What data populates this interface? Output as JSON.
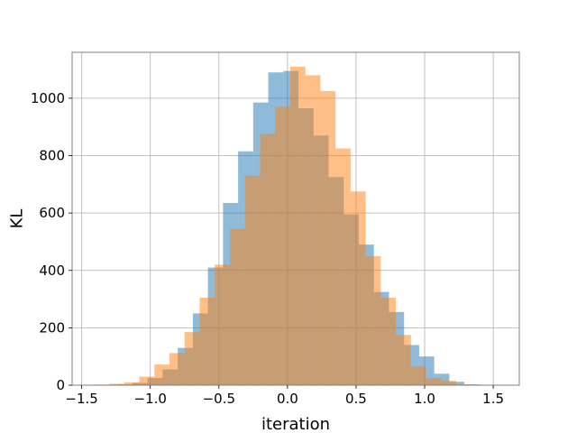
{
  "chart_data": {
    "type": "histogram",
    "title": "",
    "xlabel": "iteration",
    "ylabel": "KL",
    "xlim": [
      -1.57,
      1.69
    ],
    "ylim": [
      0,
      1160
    ],
    "xticks": [
      -1.5,
      -1.0,
      -0.5,
      0.0,
      0.5,
      1.0,
      1.5
    ],
    "xtick_labels": [
      "−1.5",
      "−1.0",
      "−0.5",
      "0.0",
      "0.5",
      "1.0",
      "1.5"
    ],
    "yticks": [
      0,
      200,
      400,
      600,
      800,
      1000
    ],
    "ytick_labels": [
      "0",
      "200",
      "400",
      "600",
      "800",
      "1000"
    ],
    "grid": true,
    "legend": false,
    "series": [
      {
        "color": "#1f77b4",
        "opacity": 0.5,
        "bins": [
          {
            "x0": -1.35,
            "x1": -1.24,
            "count": 1
          },
          {
            "x0": -1.24,
            "x1": -1.13,
            "count": 3
          },
          {
            "x0": -1.13,
            "x1": -1.02,
            "count": 8
          },
          {
            "x0": -1.02,
            "x1": -0.91,
            "count": 25
          },
          {
            "x0": -0.91,
            "x1": -0.8,
            "count": 55
          },
          {
            "x0": -0.8,
            "x1": -0.69,
            "count": 130
          },
          {
            "x0": -0.69,
            "x1": -0.58,
            "count": 250
          },
          {
            "x0": -0.58,
            "x1": -0.47,
            "count": 410
          },
          {
            "x0": -0.47,
            "x1": -0.36,
            "count": 635
          },
          {
            "x0": -0.36,
            "x1": -0.25,
            "count": 815
          },
          {
            "x0": -0.25,
            "x1": -0.14,
            "count": 985
          },
          {
            "x0": -0.14,
            "x1": -0.03,
            "count": 1090
          },
          {
            "x0": -0.03,
            "x1": 0.08,
            "count": 1095
          },
          {
            "x0": 0.08,
            "x1": 0.19,
            "count": 965
          },
          {
            "x0": 0.19,
            "x1": 0.3,
            "count": 870
          },
          {
            "x0": 0.3,
            "x1": 0.41,
            "count": 725
          },
          {
            "x0": 0.41,
            "x1": 0.52,
            "count": 595
          },
          {
            "x0": 0.52,
            "x1": 0.63,
            "count": 490
          },
          {
            "x0": 0.63,
            "x1": 0.74,
            "count": 325
          },
          {
            "x0": 0.74,
            "x1": 0.85,
            "count": 255
          },
          {
            "x0": 0.85,
            "x1": 0.96,
            "count": 140
          },
          {
            "x0": 0.96,
            "x1": 1.07,
            "count": 100
          },
          {
            "x0": 1.07,
            "x1": 1.18,
            "count": 40
          },
          {
            "x0": 1.18,
            "x1": 1.29,
            "count": 12
          },
          {
            "x0": 1.29,
            "x1": 1.4,
            "count": 3
          }
        ]
      },
      {
        "color": "#ff7f0e",
        "opacity": 0.5,
        "bins": [
          {
            "x0": -1.41,
            "x1": -1.3,
            "count": 2
          },
          {
            "x0": -1.3,
            "x1": -1.19,
            "count": 5
          },
          {
            "x0": -1.19,
            "x1": -1.08,
            "count": 10
          },
          {
            "x0": -1.08,
            "x1": -0.97,
            "count": 30
          },
          {
            "x0": -0.97,
            "x1": -0.86,
            "count": 72
          },
          {
            "x0": -0.86,
            "x1": -0.75,
            "count": 112
          },
          {
            "x0": -0.75,
            "x1": -0.64,
            "count": 185
          },
          {
            "x0": -0.64,
            "x1": -0.53,
            "count": 305
          },
          {
            "x0": -0.53,
            "x1": -0.42,
            "count": 420
          },
          {
            "x0": -0.42,
            "x1": -0.31,
            "count": 545
          },
          {
            "x0": -0.31,
            "x1": -0.2,
            "count": 730
          },
          {
            "x0": -0.2,
            "x1": -0.09,
            "count": 875
          },
          {
            "x0": -0.09,
            "x1": 0.02,
            "count": 970
          },
          {
            "x0": 0.02,
            "x1": 0.13,
            "count": 1110
          },
          {
            "x0": 0.13,
            "x1": 0.24,
            "count": 1080
          },
          {
            "x0": 0.24,
            "x1": 0.35,
            "count": 1025
          },
          {
            "x0": 0.35,
            "x1": 0.46,
            "count": 825
          },
          {
            "x0": 0.46,
            "x1": 0.57,
            "count": 675
          },
          {
            "x0": 0.57,
            "x1": 0.68,
            "count": 450
          },
          {
            "x0": 0.68,
            "x1": 0.79,
            "count": 305
          },
          {
            "x0": 0.79,
            "x1": 0.9,
            "count": 175
          },
          {
            "x0": 0.9,
            "x1": 1.01,
            "count": 65
          },
          {
            "x0": 1.01,
            "x1": 1.12,
            "count": 25
          },
          {
            "x0": 1.12,
            "x1": 1.23,
            "count": 15
          },
          {
            "x0": 1.23,
            "x1": 1.34,
            "count": 3
          },
          {
            "x0": 1.34,
            "x1": 1.45,
            "count": 1
          }
        ]
      }
    ]
  }
}
